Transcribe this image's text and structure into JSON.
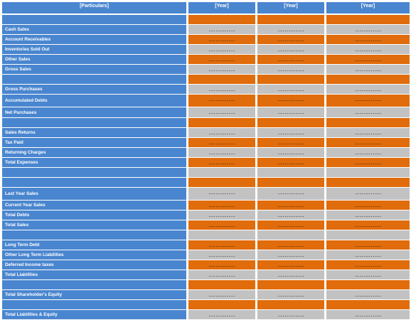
{
  "header": {
    "particulars": "[Particulars]",
    "years": [
      "[Year]",
      "[Year]",
      "[Year]"
    ]
  },
  "colors": {
    "label_blue": "#4a86cf",
    "accent_orange": "#e06c0b",
    "alt_grey": "#c2c2c2"
  },
  "rows": [
    {
      "label": "",
      "fill": "orange",
      "values": [
        "",
        "",
        ""
      ]
    },
    {
      "label": "Cash Sales",
      "fill": "grey",
      "values": [
        "------------",
        "------------",
        "------------"
      ]
    },
    {
      "label": "Account Receivables",
      "fill": "orange",
      "values": [
        "------------",
        "------------",
        "------------"
      ]
    },
    {
      "label": "Inventories Sold Out",
      "fill": "grey",
      "values": [
        "------------",
        "------------",
        "------------"
      ]
    },
    {
      "label": "Other Sales",
      "fill": "orange",
      "values": [
        "------------",
        "------------",
        "------------"
      ]
    },
    {
      "label": "Gross Sales",
      "fill": "grey",
      "values": [
        "------------",
        "------------",
        "------------"
      ]
    },
    {
      "label": "",
      "fill": "orange",
      "values": [
        "",
        "",
        ""
      ]
    },
    {
      "label": "Gross Purchases",
      "fill": "grey",
      "values": [
        "------------",
        "------------",
        "------------"
      ]
    },
    {
      "label": "Accumulated Debts",
      "fill": "orange",
      "values": [
        "------------",
        "------------",
        "------------"
      ]
    },
    {
      "label": "Net Purchases",
      "fill": "grey",
      "values": [
        "------------",
        "------------",
        "------------"
      ]
    },
    {
      "label": "",
      "fill": "orange",
      "values": [
        "",
        "",
        ""
      ]
    },
    {
      "label": "Sales Returns",
      "fill": "grey",
      "values": [
        "------------",
        "------------",
        "------------"
      ]
    },
    {
      "label": "Tax Paid",
      "fill": "orange",
      "values": [
        "------------",
        "------------",
        "------------"
      ]
    },
    {
      "label": "Returning Charges",
      "fill": "grey",
      "values": [
        "------------",
        "------------",
        "------------"
      ]
    },
    {
      "label": "Total Expenses",
      "fill": "orange",
      "values": [
        "------------",
        "------------",
        "------------"
      ]
    },
    {
      "label": "",
      "fill": "grey",
      "values": [
        "",
        "",
        ""
      ]
    },
    {
      "label": "",
      "fill": "orange",
      "values": [
        "",
        "",
        ""
      ]
    },
    {
      "label": "Last Year Sales",
      "fill": "grey",
      "values": [
        "------------",
        "------------",
        "------------"
      ]
    },
    {
      "label": "Current Year Sales",
      "fill": "orange",
      "values": [
        "------------",
        "------------",
        "------------"
      ]
    },
    {
      "label": "Total Debts",
      "fill": "grey",
      "values": [
        "------------",
        "------------",
        "------------"
      ]
    },
    {
      "label": "Total Sales",
      "fill": "orange",
      "values": [
        "------------",
        "------------",
        "------------"
      ]
    },
    {
      "label": "",
      "fill": "grey",
      "values": [
        "",
        "",
        ""
      ]
    },
    {
      "label": "Long Term Debt",
      "fill": "orange",
      "values": [
        "------------",
        "------------",
        "------------"
      ]
    },
    {
      "label": "Other Long Term Liabilities",
      "fill": "grey",
      "values": [
        "------------",
        "------------",
        "------------"
      ]
    },
    {
      "label": "Deferred Income taxes",
      "fill": "orange",
      "values": [
        "------------",
        "------------",
        "------------"
      ]
    },
    {
      "label": "Total Liabilities",
      "fill": "grey",
      "values": [
        "------------",
        "------------",
        "------------"
      ]
    },
    {
      "label": "",
      "fill": "orange",
      "values": [
        "",
        "",
        ""
      ]
    },
    {
      "label": "Total Shareholder's Equity",
      "fill": "grey",
      "values": [
        "------------",
        "------------",
        "------------"
      ]
    },
    {
      "label": "",
      "fill": "orange",
      "values": [
        "",
        "",
        ""
      ]
    },
    {
      "label": "Total Liabilities & Equity",
      "fill": "grey",
      "values": [
        "------------",
        "------------",
        "------------"
      ]
    }
  ]
}
